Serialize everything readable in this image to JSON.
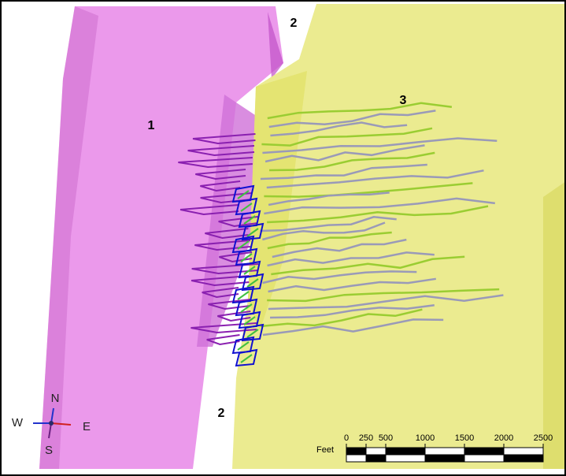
{
  "labels": [
    "1",
    "2",
    "2",
    "3"
  ],
  "compass": {
    "north": "N",
    "south": "S",
    "west": "W",
    "east": "E"
  },
  "scale": {
    "unit": "Feet",
    "ticks": [
      0,
      250,
      500,
      1000,
      1500,
      2000,
      2500
    ]
  }
}
